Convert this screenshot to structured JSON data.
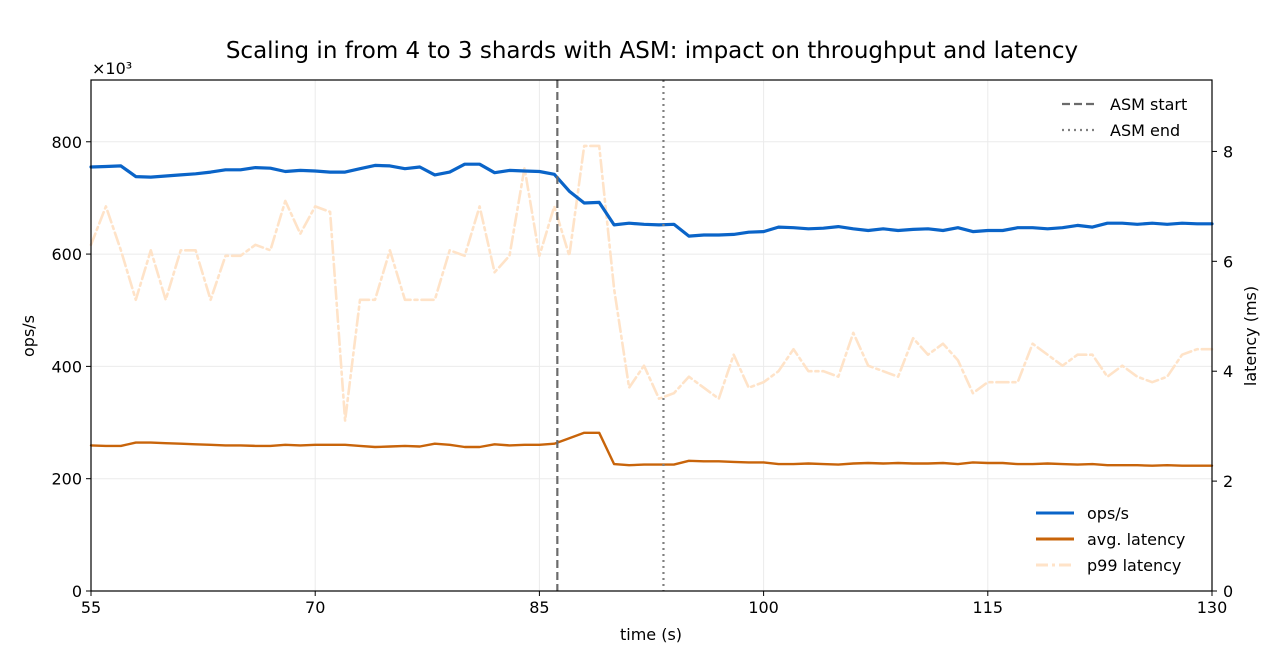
{
  "chart_data": {
    "type": "line",
    "title": "Scaling in from 4 to 3 shards with ASM: impact on throughput and latency",
    "xlabel": "time (s)",
    "ylabel": "ops/s",
    "ylabel_right": "latency (ms)",
    "y_multiplier": "×10³",
    "xlim": [
      55,
      130
    ],
    "ylim": [
      0,
      910
    ],
    "ylim_right": [
      0,
      9.3
    ],
    "x_ticks": [
      "55",
      "70",
      "85",
      "100",
      "115",
      "130"
    ],
    "y_ticks": [
      "0",
      "200",
      "400",
      "600",
      "800"
    ],
    "y_ticks_right": [
      "0",
      "2",
      "4",
      "6",
      "8"
    ],
    "grid": true,
    "x": [
      55,
      56,
      57,
      58,
      59,
      60,
      61,
      62,
      63,
      64,
      65,
      66,
      67,
      68,
      69,
      70,
      71,
      72,
      73,
      74,
      75,
      76,
      77,
      78,
      79,
      80,
      81,
      82,
      83,
      84,
      85,
      86,
      87,
      88,
      89,
      90,
      91,
      92,
      93,
      94,
      95,
      96,
      97,
      98,
      99,
      100,
      101,
      102,
      103,
      104,
      105,
      106,
      107,
      108,
      109,
      110,
      111,
      112,
      113,
      114,
      115,
      116,
      117,
      118,
      119,
      120,
      121,
      122,
      123,
      124,
      125,
      126,
      127,
      128,
      129,
      130
    ],
    "series": [
      {
        "name": "ops/s",
        "axis": "left",
        "color": "#0a64c8",
        "style": "solid",
        "values": [
          755,
          756,
          757,
          738,
          737,
          739,
          741,
          743,
          746,
          750,
          750,
          754,
          753,
          747,
          749,
          748,
          746,
          746,
          752,
          758,
          757,
          752,
          755,
          741,
          746,
          760,
          760,
          745,
          749,
          748,
          747,
          742,
          712,
          691,
          692,
          652,
          655,
          653,
          652,
          653,
          632,
          634,
          634,
          635,
          639,
          640,
          648,
          647,
          645,
          646,
          649,
          645,
          642,
          645,
          642,
          644,
          645,
          642,
          647,
          640,
          642,
          642,
          647,
          647,
          645,
          647,
          651,
          648,
          655,
          655,
          653,
          655,
          653,
          655,
          654,
          654
        ]
      },
      {
        "name": "avg. latency",
        "axis": "right",
        "color": "#c8640a",
        "style": "solid",
        "values": [
          2.65,
          2.64,
          2.64,
          2.7,
          2.7,
          2.69,
          2.68,
          2.67,
          2.66,
          2.65,
          2.65,
          2.64,
          2.64,
          2.66,
          2.65,
          2.66,
          2.66,
          2.66,
          2.64,
          2.62,
          2.63,
          2.64,
          2.63,
          2.68,
          2.66,
          2.62,
          2.62,
          2.67,
          2.65,
          2.66,
          2.66,
          2.68,
          2.78,
          2.88,
          2.88,
          2.31,
          2.29,
          2.3,
          2.3,
          2.3,
          2.37,
          2.36,
          2.36,
          2.35,
          2.34,
          2.34,
          2.31,
          2.31,
          2.32,
          2.31,
          2.3,
          2.32,
          2.33,
          2.32,
          2.33,
          2.32,
          2.32,
          2.33,
          2.31,
          2.34,
          2.33,
          2.33,
          2.31,
          2.31,
          2.32,
          2.31,
          2.3,
          2.31,
          2.29,
          2.29,
          2.29,
          2.28,
          2.29,
          2.28,
          2.28,
          2.28
        ]
      },
      {
        "name": "p99 latency",
        "axis": "right",
        "color": "#ffe3c8",
        "style": "dash-dot",
        "values": [
          6.3,
          7,
          6.2,
          5.3,
          6.2,
          5.3,
          6.2,
          6.2,
          5.3,
          6.1,
          6.1,
          6.3,
          6.2,
          7.1,
          6.5,
          7,
          6.9,
          3.1,
          5.3,
          5.3,
          6.2,
          5.3,
          5.3,
          5.3,
          6.2,
          6.1,
          7,
          5.8,
          6.1,
          7.7,
          6.1,
          7,
          6.1,
          8.1,
          8.1,
          5.5,
          3.7,
          4.1,
          3.5,
          3.6,
          3.9,
          3.7,
          3.5,
          4.3,
          3.7,
          3.8,
          4,
          4.4,
          4,
          4,
          3.9,
          4.7,
          4.1,
          4,
          3.9,
          4.6,
          4.3,
          4.5,
          4.2,
          3.6,
          3.8,
          3.8,
          3.8,
          4.5,
          4.3,
          4.1,
          4.3,
          4.3,
          3.9,
          4.1,
          3.9,
          3.8,
          3.9,
          4.3,
          4.4,
          4.4
        ]
      }
    ],
    "vlines": [
      {
        "name": "ASM start",
        "x": 86.2,
        "style": "dashed",
        "color": "#6b6b6b"
      },
      {
        "name": "ASM end",
        "x": 93.3,
        "style": "dotted",
        "color": "#808080"
      }
    ],
    "legends": {
      "top_right": [
        "ASM start",
        "ASM end"
      ],
      "bottom_right": [
        "ops/s",
        "avg. latency",
        "p99 latency"
      ]
    }
  }
}
